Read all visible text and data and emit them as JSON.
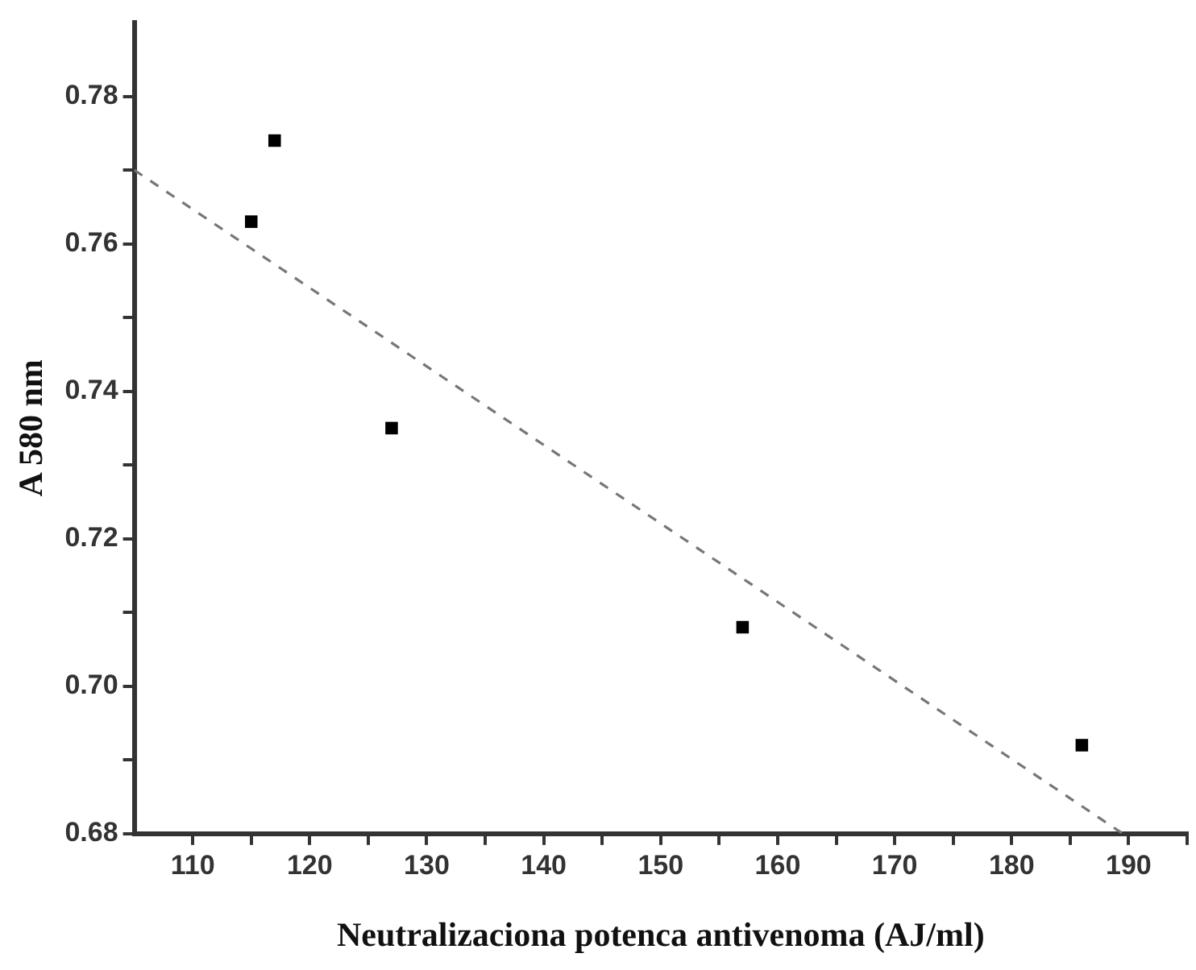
{
  "chart_data": {
    "type": "scatter",
    "xlabel": "Neutralizaciona potenca antivenoma (AJ/ml)",
    "ylabel": "A 580 nm",
    "xlim": [
      105,
      195
    ],
    "ylim": [
      0.68,
      0.79
    ],
    "xticks": [
      110,
      {
        "value": 115,
        "label": null
      },
      120,
      {
        "value": 125,
        "label": null
      },
      130,
      {
        "value": 135,
        "label": null
      },
      140,
      {
        "value": 145,
        "label": null
      },
      150,
      {
        "value": 155,
        "label": null
      },
      160,
      {
        "value": 165,
        "label": null
      },
      170,
      {
        "value": 175,
        "label": null
      },
      180,
      {
        "value": 185,
        "label": null
      },
      190,
      {
        "value": 195,
        "label": null
      }
    ],
    "yticks": [
      {
        "value": 0.68,
        "label": "0.68"
      },
      {
        "value": 0.69,
        "label": null
      },
      {
        "value": 0.7,
        "label": "0.70"
      },
      {
        "value": 0.71,
        "label": null
      },
      {
        "value": 0.72,
        "label": "0.72"
      },
      {
        "value": 0.73,
        "label": null
      },
      {
        "value": 0.74,
        "label": "0.74"
      },
      {
        "value": 0.75,
        "label": null
      },
      {
        "value": 0.76,
        "label": "0.76"
      },
      {
        "value": 0.77,
        "label": null
      },
      {
        "value": 0.78,
        "label": "0.78"
      }
    ],
    "grid": false,
    "legend": false,
    "marker": "square",
    "series": [
      {
        "color": "#000000",
        "x": [
          115,
          117,
          127,
          157,
          186
        ],
        "values": [
          0.763,
          0.774,
          0.735,
          0.708,
          0.692
        ]
      },
      {
        "type": "line",
        "color": "#777777",
        "line_style": "dashed",
        "marker": "none",
        "x": [
          105,
          189.5
        ],
        "values": [
          0.77,
          0.68
        ]
      }
    ]
  }
}
